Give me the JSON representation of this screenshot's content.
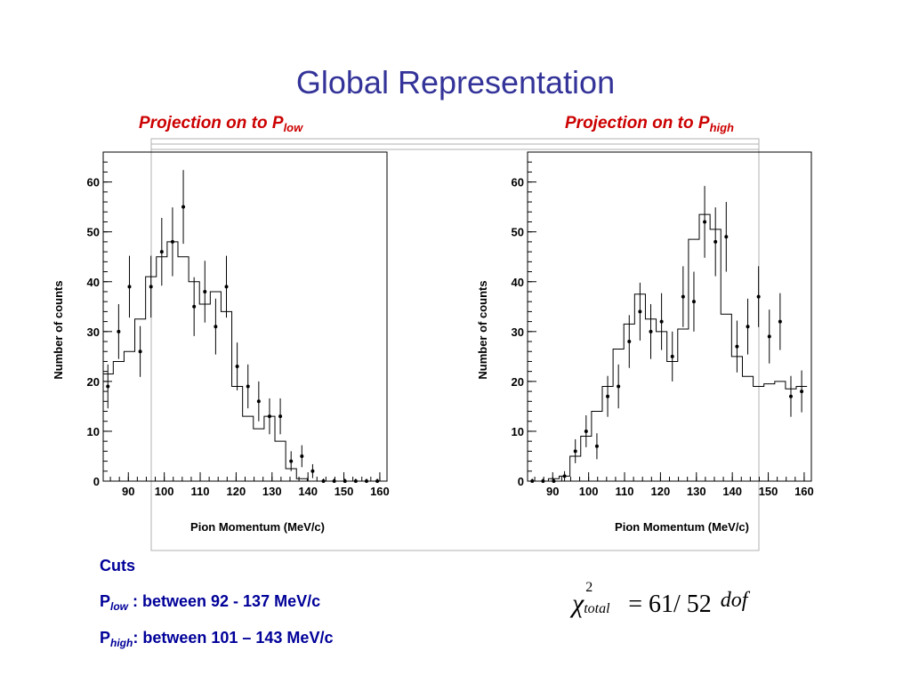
{
  "title": "Global Representation",
  "subheads": [
    {
      "main": "Projection on to P",
      "sub": "low"
    },
    {
      "main": "Projection on to P",
      "sub": "high"
    }
  ],
  "cuts": {
    "heading": "Cuts",
    "low": {
      "p": "P",
      "sub": "low",
      "text": " : between  92 - 137 MeV/c"
    },
    "high": {
      "p": "P",
      "sub": "high",
      "text": ": between 101 – 143 MeV/c"
    }
  },
  "formula": {
    "chi": "χ",
    "sup": "2",
    "sub": "total",
    "eq": "= 61/ 52",
    "dof": "dof"
  },
  "chart_data": [
    {
      "type": "histogram",
      "name": "low",
      "xlabel": "Pion Momentum (MeV/c)",
      "ylabel": "Number of counts",
      "xlim": [
        83,
        162
      ],
      "ylim": [
        0,
        66
      ],
      "xticks": [
        90,
        100,
        110,
        120,
        130,
        140,
        150,
        160
      ],
      "yticks": [
        0,
        10,
        20,
        30,
        40,
        50,
        60
      ],
      "grid": false,
      "bin_edges": [
        83,
        85.8,
        88.8,
        91.8,
        94.8,
        97.8,
        100.8,
        103.8,
        106.8,
        109.8,
        112.8,
        115.8,
        118.8,
        121.8,
        124.8,
        127.8,
        130.8,
        133.8,
        136.8,
        139.8,
        142.8,
        145.8,
        148.8,
        151.8,
        154.8,
        157.8,
        160.8
      ],
      "mc_counts": [
        21.5,
        24,
        26,
        32.5,
        41,
        45,
        48,
        45,
        40,
        35.5,
        38,
        34,
        19,
        13,
        10.5,
        13,
        8,
        2.5,
        0.5,
        0,
        0,
        0,
        0,
        0,
        0,
        0
      ],
      "points": [
        {
          "x": 84.3,
          "y": 19,
          "err": 4.4
        },
        {
          "x": 87.3,
          "y": 30,
          "err": 5.5
        },
        {
          "x": 90.3,
          "y": 39,
          "err": 6.2
        },
        {
          "x": 93.3,
          "y": 26,
          "err": 5.1
        },
        {
          "x": 96.3,
          "y": 39,
          "err": 6.2
        },
        {
          "x": 99.3,
          "y": 46,
          "err": 6.8
        },
        {
          "x": 102.3,
          "y": 48,
          "err": 6.9
        },
        {
          "x": 105.3,
          "y": 55,
          "err": 7.4
        },
        {
          "x": 108.3,
          "y": 35,
          "err": 5.9
        },
        {
          "x": 111.3,
          "y": 38,
          "err": 6.2
        },
        {
          "x": 114.3,
          "y": 31,
          "err": 5.6
        },
        {
          "x": 117.3,
          "y": 39,
          "err": 6.2
        },
        {
          "x": 120.3,
          "y": 23,
          "err": 4.8
        },
        {
          "x": 123.3,
          "y": 19,
          "err": 4.4
        },
        {
          "x": 126.3,
          "y": 16,
          "err": 4.0
        },
        {
          "x": 129.3,
          "y": 13,
          "err": 3.6
        },
        {
          "x": 132.3,
          "y": 13,
          "err": 3.6
        },
        {
          "x": 135.3,
          "y": 4,
          "err": 2.0
        },
        {
          "x": 138.3,
          "y": 5,
          "err": 2.2
        },
        {
          "x": 141.3,
          "y": 2,
          "err": 1.4
        },
        {
          "x": 144.3,
          "y": 0,
          "err": 0.5
        },
        {
          "x": 147.3,
          "y": 0,
          "err": 0.5
        },
        {
          "x": 150.3,
          "y": 0,
          "err": 0.5
        },
        {
          "x": 153.3,
          "y": 0,
          "err": 0.5
        },
        {
          "x": 156.3,
          "y": 0,
          "err": 0.5
        },
        {
          "x": 159.3,
          "y": 0,
          "err": 0.5
        }
      ]
    },
    {
      "type": "histogram",
      "name": "high",
      "xlabel": "Pion Momentum (MeV/c)",
      "ylabel": "Number of counts",
      "xlim": [
        83,
        162
      ],
      "ylim": [
        0,
        66
      ],
      "xticks": [
        90,
        100,
        110,
        120,
        130,
        140,
        150,
        160
      ],
      "yticks": [
        0,
        10,
        20,
        30,
        40,
        50,
        60
      ],
      "grid": false,
      "bin_edges": [
        83,
        85.8,
        88.8,
        91.8,
        94.8,
        97.8,
        100.8,
        103.8,
        106.8,
        109.8,
        112.8,
        115.8,
        118.8,
        121.8,
        124.8,
        127.8,
        130.8,
        133.8,
        136.8,
        139.8,
        142.8,
        145.8,
        148.8,
        151.8,
        154.8,
        157.8,
        160.8
      ],
      "mc_counts": [
        0,
        0,
        0.5,
        1,
        5,
        9,
        14,
        19,
        26.5,
        31.5,
        37.5,
        32.5,
        30,
        24,
        30.5,
        48.5,
        53.5,
        50.5,
        33.5,
        25,
        21,
        19,
        19.5,
        20,
        18.5,
        19
      ],
      "points": [
        {
          "x": 84.3,
          "y": 0,
          "err": 0.5
        },
        {
          "x": 87.3,
          "y": 0,
          "err": 0.5
        },
        {
          "x": 90.3,
          "y": 0,
          "err": 0.5
        },
        {
          "x": 93.3,
          "y": 1,
          "err": 1.0
        },
        {
          "x": 96.3,
          "y": 6,
          "err": 2.4
        },
        {
          "x": 99.3,
          "y": 10,
          "err": 3.2
        },
        {
          "x": 102.3,
          "y": 7,
          "err": 2.6
        },
        {
          "x": 105.3,
          "y": 17,
          "err": 4.1
        },
        {
          "x": 108.3,
          "y": 19,
          "err": 4.4
        },
        {
          "x": 111.3,
          "y": 28,
          "err": 5.3
        },
        {
          "x": 114.3,
          "y": 34,
          "err": 5.8
        },
        {
          "x": 117.3,
          "y": 30,
          "err": 5.5
        },
        {
          "x": 120.3,
          "y": 32,
          "err": 5.7
        },
        {
          "x": 123.3,
          "y": 25,
          "err": 5.0
        },
        {
          "x": 126.3,
          "y": 37,
          "err": 6.1
        },
        {
          "x": 129.3,
          "y": 36,
          "err": 6.0
        },
        {
          "x": 132.3,
          "y": 52,
          "err": 7.2
        },
        {
          "x": 135.3,
          "y": 48,
          "err": 6.9
        },
        {
          "x": 138.3,
          "y": 49,
          "err": 7.0
        },
        {
          "x": 141.3,
          "y": 27,
          "err": 5.2
        },
        {
          "x": 144.3,
          "y": 31,
          "err": 5.6
        },
        {
          "x": 147.3,
          "y": 37,
          "err": 6.1
        },
        {
          "x": 150.3,
          "y": 29,
          "err": 5.4
        },
        {
          "x": 153.3,
          "y": 32,
          "err": 5.7
        },
        {
          "x": 156.3,
          "y": 17,
          "err": 4.1
        },
        {
          "x": 159.3,
          "y": 18,
          "err": 4.2
        }
      ]
    }
  ]
}
